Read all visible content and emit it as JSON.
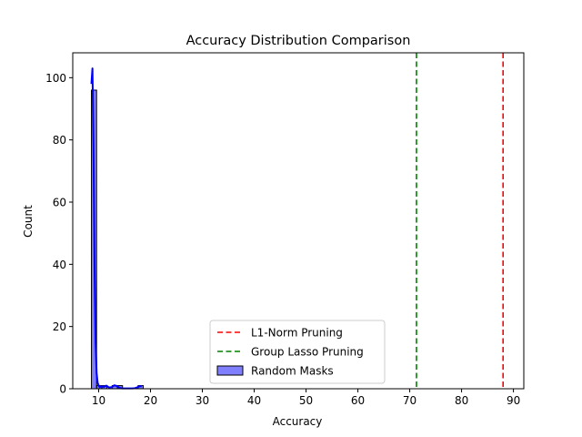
{
  "chart_data": {
    "type": "histogram",
    "title": "Accuracy Distribution Comparison",
    "xlabel": "Accuracy",
    "ylabel": "Count",
    "xlim": [
      5,
      92
    ],
    "ylim": [
      0,
      108
    ],
    "xticks": [
      10,
      20,
      30,
      40,
      50,
      60,
      70,
      80,
      90
    ],
    "yticks": [
      0,
      20,
      40,
      60,
      80,
      100
    ],
    "grid": false,
    "legend_position": "lower center",
    "histogram": {
      "name": "Random Masks",
      "color": "#0000ff",
      "fill_opacity": 0.5,
      "bins": [
        {
          "x0": 8.6,
          "x1": 9.6,
          "count": 96
        },
        {
          "x0": 9.6,
          "x1": 10.6,
          "count": 1
        },
        {
          "x0": 10.6,
          "x1": 11.6,
          "count": 1
        },
        {
          "x0": 11.6,
          "x1": 12.6,
          "count": 0
        },
        {
          "x0": 12.6,
          "x1": 13.6,
          "count": 1
        },
        {
          "x0": 13.6,
          "x1": 14.6,
          "count": 1
        },
        {
          "x0": 14.6,
          "x1": 15.6,
          "count": 0
        },
        {
          "x0": 15.6,
          "x1": 16.6,
          "count": 0
        },
        {
          "x0": 16.6,
          "x1": 17.6,
          "count": 0
        },
        {
          "x0": 17.6,
          "x1": 18.6,
          "count": 1
        }
      ]
    },
    "kde": {
      "x": [
        8.6,
        8.8,
        9.0,
        9.2,
        9.4,
        9.6,
        9.8,
        10.0,
        10.2,
        10.5,
        11.0,
        11.5,
        12.0,
        12.5,
        13.0,
        13.5,
        14.0,
        14.5,
        15.0,
        15.5,
        16.0,
        16.5,
        17.0,
        17.5,
        18.0,
        18.3
      ],
      "y": [
        98,
        103,
        78,
        40,
        15,
        5,
        2,
        1,
        0.5,
        0.8,
        0.6,
        1.0,
        0.4,
        0.5,
        1.1,
        0.9,
        0.3,
        0.1,
        0.1,
        0.1,
        0.1,
        0.1,
        0.2,
        0.5,
        0.9,
        0.7
      ]
    },
    "vlines": [
      {
        "name": "L1-Norm Pruning",
        "x": 88.0,
        "color": "#ff0000"
      },
      {
        "name": "Group Lasso Pruning",
        "x": 71.3,
        "color": "#008000"
      }
    ],
    "legend": [
      {
        "label": "L1-Norm Pruning",
        "kind": "dashed",
        "color": "#ff0000"
      },
      {
        "label": "Group Lasso Pruning",
        "kind": "dashed",
        "color": "#008000"
      },
      {
        "label": "Random Masks",
        "kind": "patch",
        "color": "#0000ff"
      }
    ]
  }
}
